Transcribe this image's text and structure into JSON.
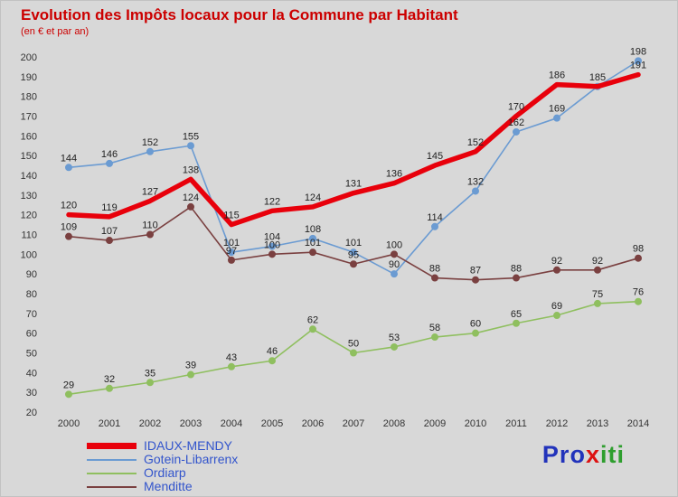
{
  "title": "Evolution des Impôts locaux pour la Commune par Habitant",
  "subtitle": "(en € et par an)",
  "axis": {
    "y_ticks": [
      20,
      30,
      40,
      50,
      60,
      70,
      80,
      90,
      100,
      110,
      120,
      130,
      140,
      150,
      160,
      170,
      180,
      190,
      200
    ],
    "x_ticks": [
      "2000",
      "2001",
      "2002",
      "2003",
      "2004",
      "2005",
      "2006",
      "2007",
      "2008",
      "2009",
      "2010",
      "2011",
      "2012",
      "2013",
      "2014"
    ]
  },
  "chart_data": {
    "type": "line",
    "x": [
      2000,
      2001,
      2002,
      2003,
      2004,
      2005,
      2006,
      2007,
      2008,
      2009,
      2010,
      2011,
      2012,
      2013,
      2014
    ],
    "series": [
      {
        "name": "Gotein-Libarrenx",
        "color": "#6b9bd2",
        "line_width": 1.6,
        "markers": true,
        "legend_thickness": 2,
        "values": [
          144,
          146,
          152,
          155,
          101,
          104,
          108,
          101,
          90,
          114,
          132,
          162,
          169,
          185,
          198
        ]
      },
      {
        "name": "Ordiarp",
        "color": "#8fbf5f",
        "line_width": 1.6,
        "markers": true,
        "legend_thickness": 2,
        "values": [
          29,
          32,
          35,
          39,
          43,
          46,
          62,
          50,
          53,
          58,
          60,
          65,
          69,
          75,
          76
        ]
      },
      {
        "name": "Menditte",
        "color": "#7a4040",
        "line_width": 1.6,
        "markers": true,
        "legend_thickness": 2,
        "values": [
          109,
          107,
          110,
          124,
          97,
          100,
          101,
          95,
          100,
          88,
          87,
          88,
          92,
          92,
          98
        ]
      },
      {
        "name": "IDAUX-MENDY",
        "color": "#e8000b",
        "line_width": 5.5,
        "markers": false,
        "legend_thickness": 7,
        "values": [
          120,
          119,
          127,
          138,
          115,
          122,
          124,
          131,
          136,
          145,
          152,
          170,
          186,
          185,
          191
        ]
      }
    ],
    "legend_order": [
      "IDAUX-MENDY",
      "Gotein-Libarrenx",
      "Ordiarp",
      "Menditte"
    ],
    "ylim": [
      20,
      200
    ],
    "ytick_step": 10,
    "grid": false,
    "legend_position": "bottom-left",
    "title": "Evolution des Impôts locaux pour la Commune par Habitant",
    "subtitle": "(en € et par an)"
  },
  "logo": {
    "text": "Proxiti",
    "letters": [
      {
        "ch": "P",
        "color": "#2233bb"
      },
      {
        "ch": "r",
        "color": "#2233bb"
      },
      {
        "ch": "o",
        "color": "#2233bb"
      },
      {
        "ch": "x",
        "color": "#dd1111"
      },
      {
        "ch": "i",
        "color": "#2e9e2e"
      },
      {
        "ch": "t",
        "color": "#2e9e2e"
      },
      {
        "ch": "i",
        "color": "#2e9e2e"
      }
    ]
  }
}
